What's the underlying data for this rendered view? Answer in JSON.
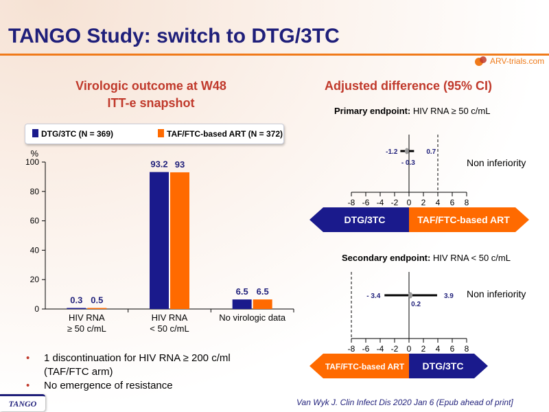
{
  "slide": {
    "title": "TANGO Study: switch to DTG/3TC",
    "logo_text": "ARV-trials.com",
    "badge": "TANGO",
    "citation": "Van Wyk J. Clin Infect Dis 2020 Jan 6 (Epub ahead of print]",
    "colors": {
      "title": "#1f1f7a",
      "accent": "#f07a1a",
      "heading": "#c0392b",
      "dtg": "#1a1a8c",
      "taf": "#ff6a00"
    }
  },
  "left": {
    "heading_line1": "Virologic outcome at W48",
    "heading_line2": "ITT-e snapshot"
  },
  "right": {
    "heading": "Adjusted difference (95% CI)",
    "ep1_title_bold": "Primary endpoint:",
    "ep1_title_rest": " HIV RNA ≥ 50 c/mL",
    "ep1_ni": "Non inferiority",
    "ep2_title_bold": "Secondary endpoint:",
    "ep2_title_rest": " HIV RNA < 50 c/mL",
    "ep2_ni": "Non inferiority"
  },
  "bullets": [
    "1 discontinuation for HIV RNA ≥ 200 c/ml",
    "(TAF/FTC  arm)",
    "No emergence  of resistance"
  ],
  "chart_data": [
    {
      "type": "bar",
      "ylabel": "%",
      "ylim": [
        0,
        100
      ],
      "yticks": [
        0,
        20,
        40,
        60,
        80,
        100
      ],
      "grid": false,
      "legend_position": "top",
      "categories": [
        "HIV RNA\n≥ 50 c/mL",
        "HIV RNA\n< 50 c/mL",
        "No virologic data"
      ],
      "series": [
        {
          "name": "DTG/3TC (N = 369)",
          "color": "#1a1a8c",
          "values": [
            0.3,
            93.2,
            6.5
          ],
          "labels": [
            "0.3",
            "93.2",
            "6.5"
          ]
        },
        {
          "name": "TAF/FTC-based ART (N = 372)",
          "color": "#ff6a00",
          "values": [
            0.5,
            93,
            6.5
          ],
          "labels": [
            "0.5",
            "93",
            "6.5"
          ]
        }
      ]
    },
    {
      "type": "scatter",
      "title": "Primary endpoint: HIV RNA ≥ 50 c/mL",
      "xlim": [
        -8,
        8
      ],
      "xticks": [
        -8,
        -6,
        -4,
        -2,
        0,
        2,
        4,
        6,
        8
      ],
      "ni_margin": 4,
      "estimate": -0.3,
      "ci": [
        -1.2,
        0.7
      ],
      "labels": {
        "lower": "-1.2",
        "upper": "0.7",
        "estimate": "- 0.3"
      },
      "arrow_left": "DTG/3TC",
      "arrow_right": "TAF/FTC-based ART",
      "annotation": "Non inferiority"
    },
    {
      "type": "scatter",
      "title": "Secondary endpoint: HIV RNA < 50 c/mL",
      "xlim": [
        -8,
        8
      ],
      "xticks": [
        -8,
        -6,
        -4,
        -2,
        0,
        2,
        4,
        6,
        8
      ],
      "ni_margin": -8,
      "estimate": 0.2,
      "ci": [
        -3.4,
        3.9
      ],
      "labels": {
        "lower": "- 3.4",
        "upper": "3.9",
        "estimate": "0.2"
      },
      "arrow_left": "TAF/FTC-based ART",
      "arrow_right": "DTG/3TC",
      "annotation": "Non inferiority"
    }
  ]
}
